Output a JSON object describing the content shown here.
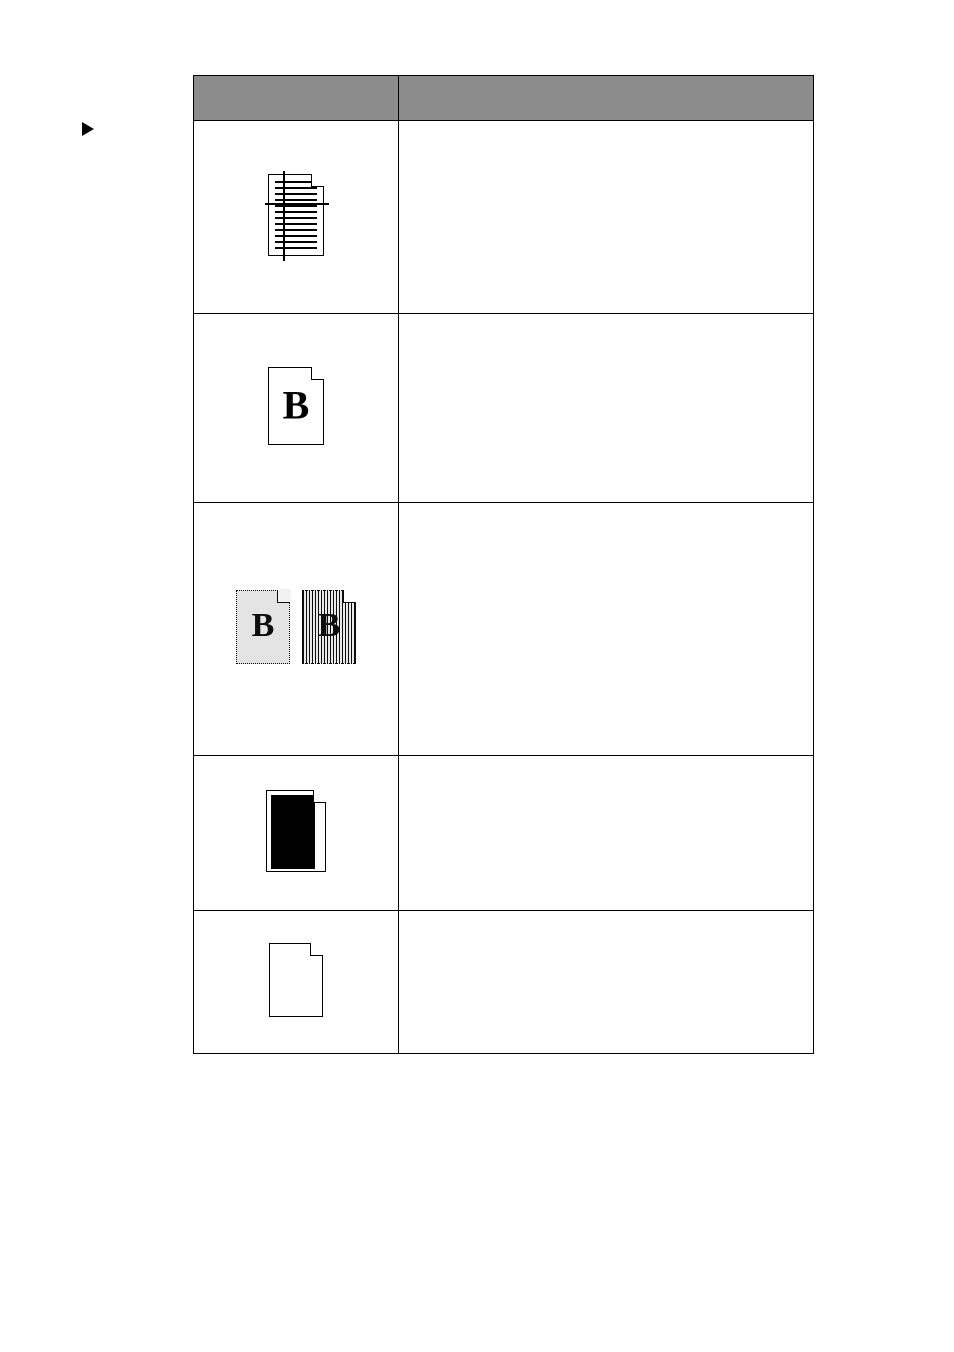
{
  "table": {
    "header_bg": "#8c8c8c",
    "border_color": "#000000",
    "columns": [
      "",
      ""
    ],
    "rows": [
      {
        "icon": "doc-lines-crosshair",
        "text": ""
      },
      {
        "icon": "page-bold-b",
        "text": ""
      },
      {
        "icon": "two-noisy-b-pages",
        "text": ""
      },
      {
        "icon": "page-black-block",
        "text": ""
      },
      {
        "icon": "blank-page",
        "text": ""
      }
    ]
  },
  "sidebar_marker": {
    "visible": true,
    "color": "#000000"
  }
}
